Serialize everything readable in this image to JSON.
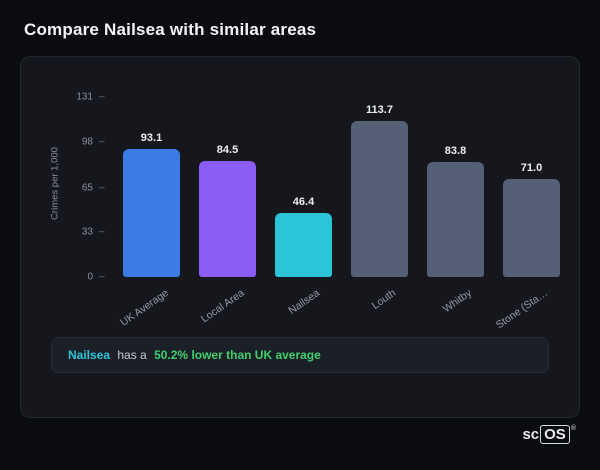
{
  "page": {
    "title": "Compare Nailsea with similar areas"
  },
  "chart_data": {
    "type": "bar",
    "categories": [
      "UK Average",
      "Local Area",
      "Nailsea",
      "Louth",
      "Whitby",
      "Stone (Sta…"
    ],
    "values": [
      93.1,
      84.5,
      46.4,
      113.7,
      83.8,
      71.0
    ],
    "value_labels": [
      "93.1",
      "84.5",
      "46.4",
      "113.7",
      "83.8",
      "71.0"
    ],
    "bar_colors": [
      "#3b7ce4",
      "#8b5cf6",
      "#2bc4d9",
      "#566074",
      "#566074",
      "#566074"
    ],
    "title": "",
    "xlabel": "",
    "ylabel": "Crimes per 1,000",
    "yticks": [
      0,
      33,
      65,
      98,
      131
    ],
    "ylim": [
      0,
      131
    ],
    "grid": false,
    "legend": false
  },
  "summary": {
    "area_name": "Nailsea",
    "middle_text": "has a",
    "highlight_text": "50.2% lower than UK average",
    "area_color": "#2bc4d9",
    "highlight_color": "#3ecf6f"
  },
  "logo": {
    "prefix": "sc",
    "boxed": "OS",
    "registered": "®"
  }
}
